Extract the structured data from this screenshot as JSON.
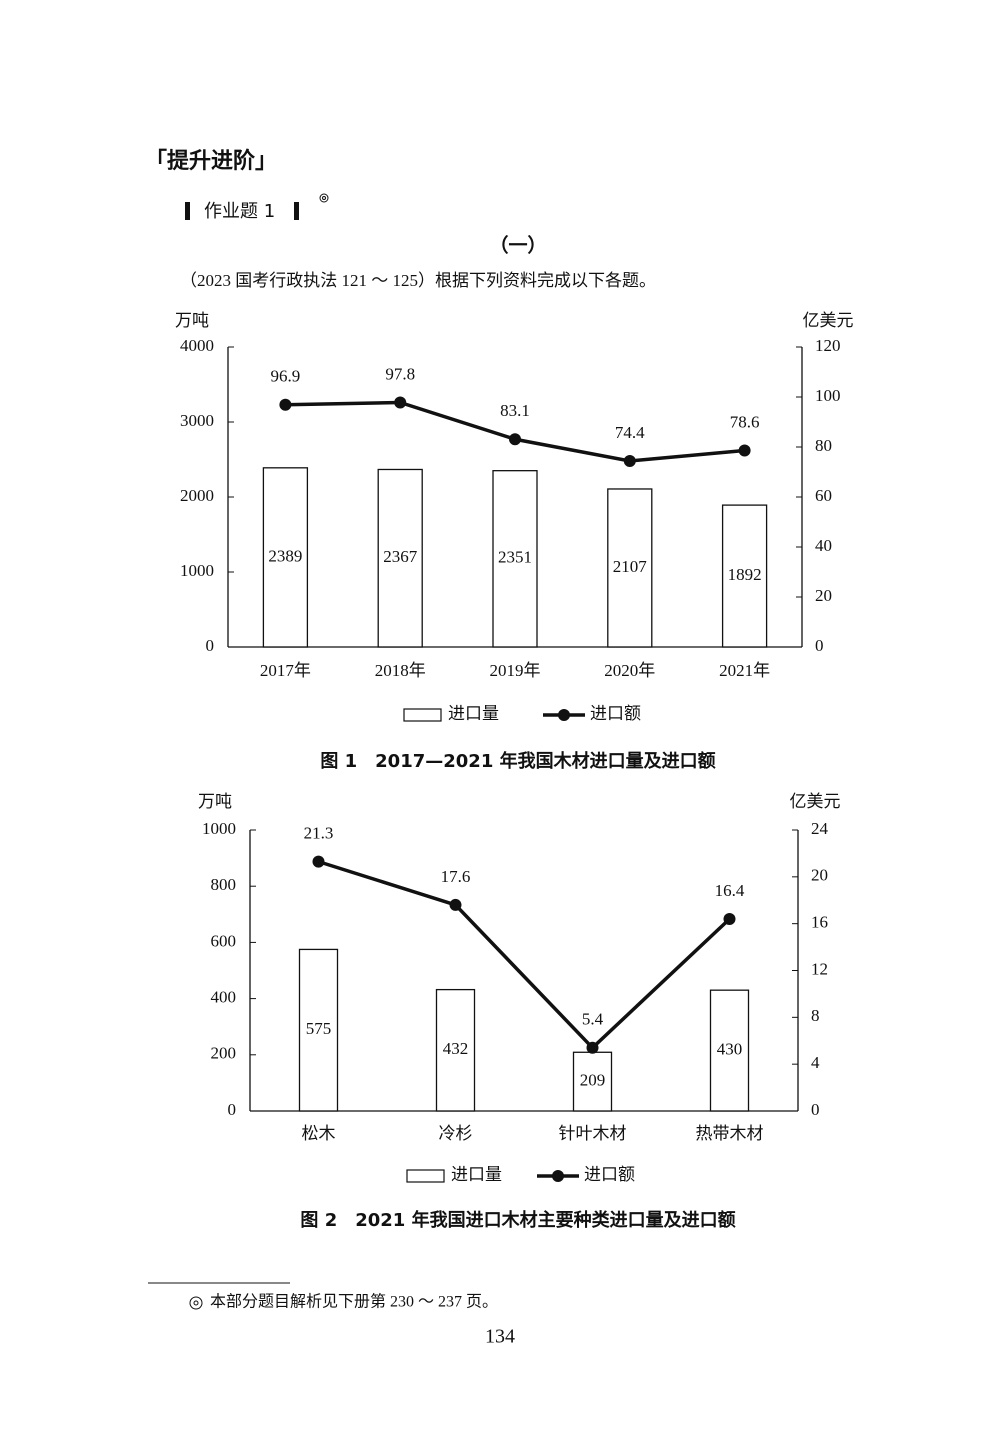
{
  "header": {
    "section": "「提升进阶」",
    "exercise": "作业题 1",
    "part": "（一）",
    "intro": "（2023 国考行政执法 121 ～ 125）根据下列资料完成以下各题。"
  },
  "chart_data": [
    {
      "type": "combo",
      "title": "图 1　2017—2021 年我国木材进口量及进口额",
      "y_label": "万吨",
      "y2_label": "亿美元",
      "categories": [
        "2017年",
        "2018年",
        "2019年",
        "2020年",
        "2021年"
      ],
      "series": [
        {
          "name": "进口量",
          "type": "bar",
          "color": "#ffffff",
          "values": [
            2389,
            2367,
            2351,
            2107,
            1892
          ]
        },
        {
          "name": "进口额",
          "type": "line",
          "axis": "y2",
          "color": "#111111",
          "values": [
            96.9,
            97.8,
            83.1,
            74.4,
            78.6
          ]
        }
      ],
      "ylim": [
        0,
        4000
      ],
      "yticks": [
        0,
        1000,
        2000,
        3000,
        4000
      ],
      "y2lim": [
        0,
        120
      ],
      "y2ticks": [
        0,
        20,
        40,
        60,
        80,
        100,
        120
      ]
    },
    {
      "type": "combo",
      "title": "图 2　2021 年我国进口木材主要种类进口量及进口额",
      "y_label": "万吨",
      "y2_label": "亿美元",
      "categories": [
        "松木",
        "冷杉",
        "针叶木材",
        "热带木材"
      ],
      "series": [
        {
          "name": "进口量",
          "type": "bar",
          "color": "#ffffff",
          "values": [
            575,
            432,
            209,
            430
          ]
        },
        {
          "name": "进口额",
          "type": "line",
          "axis": "y2",
          "color": "#111111",
          "values": [
            21.3,
            17.6,
            5.4,
            16.4
          ]
        }
      ],
      "ylim": [
        0,
        1000
      ],
      "yticks": [
        0,
        200,
        400,
        600,
        800,
        1000
      ],
      "y2lim": [
        0,
        24
      ],
      "y2ticks": [
        0,
        4,
        8,
        12,
        16,
        20,
        24
      ]
    }
  ],
  "footnote": "本部分题目解析见下册第 230 ～ 237 页。",
  "page_number": "134"
}
